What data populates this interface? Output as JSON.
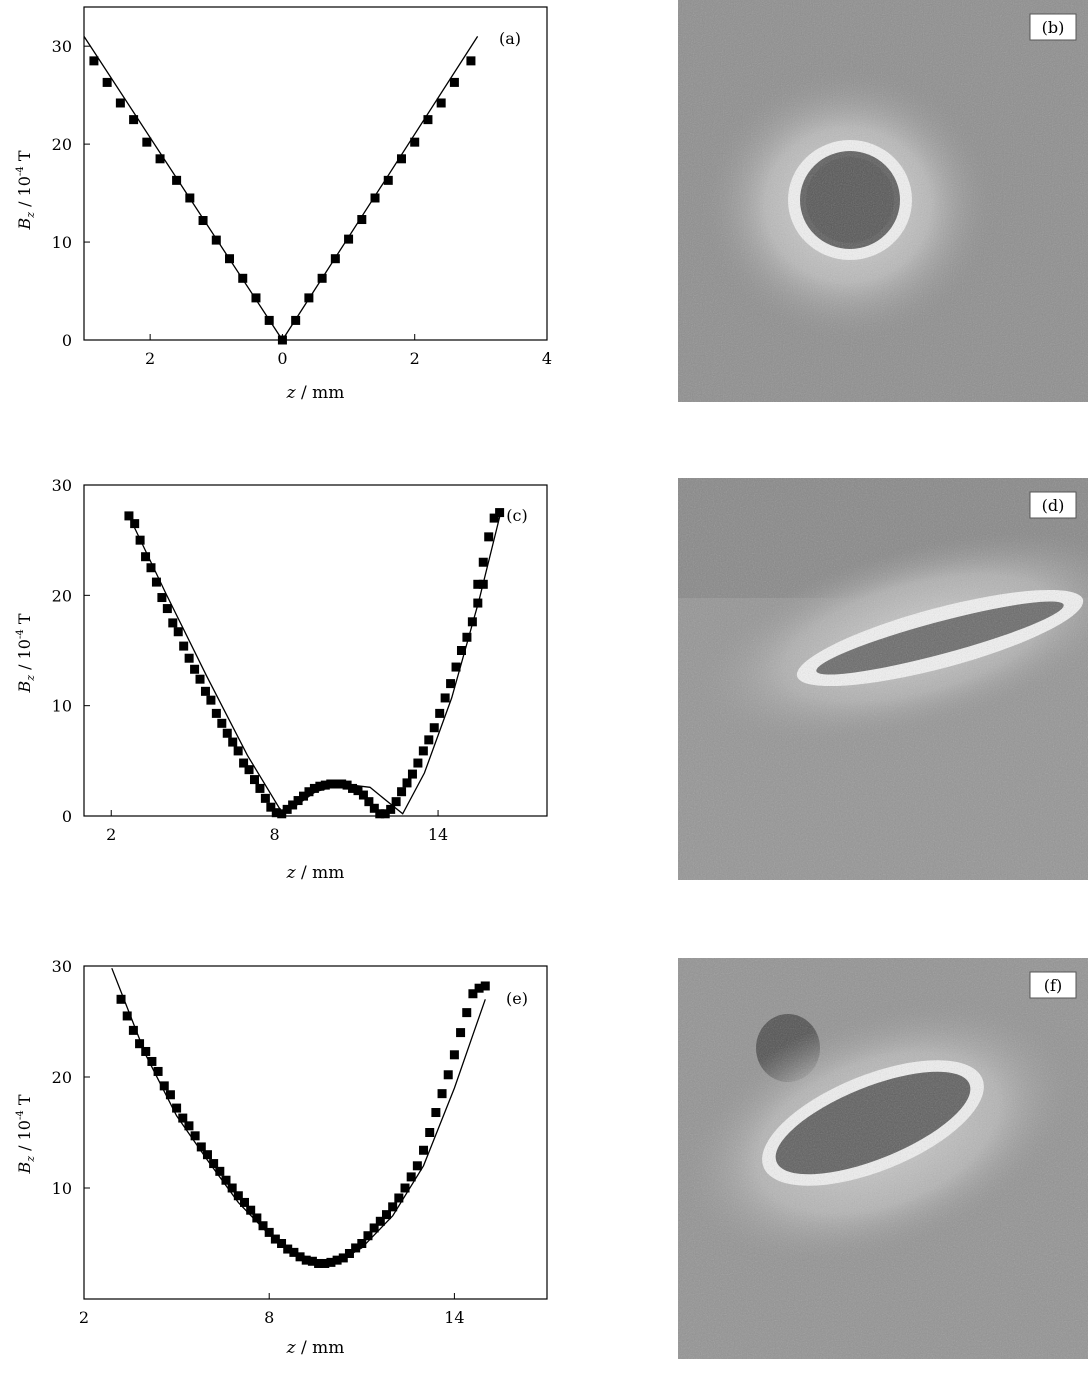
{
  "chart_data": [
    {
      "type": "scatter",
      "panel_label": "(a)",
      "xlabel": "z / mm",
      "ylabel": "Bz / 10⁻⁴ T",
      "ylabel_parts": {
        "sym": "B",
        "sub": "z",
        "unit": " / 10",
        "sup": "-4",
        "tail": " T"
      },
      "xlim": [
        -3.0,
        4.0
      ],
      "ylim": [
        0,
        34
      ],
      "x_ticks": [
        -2,
        0,
        2,
        4
      ],
      "x_tick_labels": [
        "2",
        "0",
        "2",
        "4"
      ],
      "y_ticks": [
        0,
        10,
        20,
        30
      ],
      "y_tick_labels": [
        "0",
        "10",
        "20",
        "30"
      ],
      "series": [
        {
          "style": "markers",
          "x": [
            -2.85,
            -2.65,
            -2.45,
            -2.25,
            -2.05,
            -1.85,
            -1.6,
            -1.4,
            -1.2,
            -1.0,
            -0.8,
            -0.6,
            -0.4,
            -0.2,
            0.0,
            0.2,
            0.4,
            0.6,
            0.8,
            1.0,
            1.2,
            1.4,
            1.6,
            1.8,
            2.0,
            2.2,
            2.4,
            2.6,
            2.85
          ],
          "y": [
            28.5,
            26.3,
            24.2,
            22.5,
            20.2,
            18.5,
            16.3,
            14.5,
            12.2,
            10.2,
            8.3,
            6.3,
            4.3,
            2.0,
            0.0,
            2.0,
            4.3,
            6.3,
            8.3,
            10.3,
            12.3,
            14.5,
            16.3,
            18.5,
            20.2,
            22.5,
            24.2,
            26.3,
            28.5
          ]
        },
        {
          "style": "line",
          "x": [
            -3.0,
            0.0,
            2.95
          ],
          "y": [
            31.0,
            0.0,
            31.0
          ]
        }
      ]
    },
    {
      "type": "scatter",
      "panel_label": "(c)",
      "xlabel": "z / mm",
      "ylabel": "Bz / 10⁻⁴ T",
      "ylabel_parts": {
        "sym": "B",
        "sub": "z",
        "unit": " / 10",
        "sup": "-4",
        "tail": " T"
      },
      "xlim": [
        1.0,
        18.0
      ],
      "ylim": [
        0,
        30
      ],
      "x_ticks": [
        2,
        8,
        14
      ],
      "x_tick_labels": [
        "2",
        "8",
        "14"
      ],
      "y_ticks": [
        0,
        10,
        20,
        30
      ],
      "y_tick_labels": [
        "0",
        "10",
        "20",
        "30"
      ],
      "series": [
        {
          "style": "markers",
          "x": [
            2.65,
            2.86,
            3.06,
            3.26,
            3.46,
            3.66,
            3.86,
            4.06,
            4.26,
            4.46,
            4.66,
            4.86,
            5.06,
            5.26,
            5.46,
            5.66,
            5.86,
            6.06,
            6.26,
            6.46,
            6.66,
            6.86,
            7.06,
            7.26,
            7.46,
            7.66,
            7.86,
            8.06,
            8.26,
            8.46,
            8.66,
            8.86,
            9.06,
            9.26,
            9.46,
            9.66,
            9.86,
            10.06,
            10.26,
            10.46,
            10.66,
            10.86,
            11.06,
            11.26,
            11.46,
            11.66,
            11.86,
            12.06,
            12.26,
            12.46,
            12.66,
            12.86,
            13.06,
            13.26,
            13.46,
            13.66,
            13.86,
            14.06,
            14.26,
            14.46,
            14.66,
            14.86,
            15.06,
            15.26,
            15.46,
            15.66
          ],
          "y": [
            27.2,
            26.5,
            25.0,
            23.5,
            22.5,
            21.2,
            19.8,
            18.8,
            17.5,
            16.7,
            15.4,
            14.3,
            13.3,
            12.4,
            11.3,
            10.5,
            9.3,
            8.4,
            7.5,
            6.7,
            5.9,
            4.8,
            4.2,
            3.3,
            2.5,
            1.6,
            0.8,
            0.3,
            0.2,
            0.6,
            1.0,
            1.4,
            1.8,
            2.2,
            2.5,
            2.7,
            2.8,
            2.9,
            2.9,
            2.9,
            2.8,
            2.5,
            2.3,
            1.9,
            1.3,
            0.7,
            0.2,
            0.2,
            0.6,
            1.3,
            2.2,
            3.0,
            3.8,
            4.8,
            5.9,
            6.9,
            8.0,
            9.3,
            10.7,
            12.0,
            13.5,
            15.0,
            16.2,
            17.6,
            19.3,
            21.0
          ]
        },
        {
          "style": "markers",
          "x": [
            15.46,
            15.66,
            15.86,
            16.06,
            16.26
          ],
          "y": [
            21.0,
            23.0,
            25.3,
            27.0,
            27.5
          ]
        },
        {
          "style": "line",
          "x": [
            2.65,
            4.0,
            5.5,
            7.0,
            8.3,
            8.7,
            9.5,
            10.5,
            11.5,
            12.3,
            12.7,
            13.5,
            14.5,
            15.5,
            16.3
          ],
          "y": [
            27.2,
            20.2,
            12.7,
            5.5,
            0.2,
            0.8,
            2.2,
            2.9,
            2.6,
            1.0,
            0.2,
            3.9,
            10.7,
            19.5,
            27.5
          ]
        }
      ]
    },
    {
      "type": "scatter",
      "panel_label": "(e)",
      "xlabel": "z / mm",
      "ylabel": "Bz / 10⁻⁴ T",
      "ylabel_parts": {
        "sym": "B",
        "sub": "z",
        "unit": " / 10",
        "sup": "-4",
        "tail": " T"
      },
      "xlim": [
        2.0,
        17.0
      ],
      "ylim": [
        0,
        30
      ],
      "x_ticks": [
        2,
        8,
        14
      ],
      "x_tick_labels": [
        "2",
        "8",
        "14"
      ],
      "y_ticks": [
        10,
        20,
        30
      ],
      "y_tick_labels": [
        "10",
        "20",
        "30"
      ],
      "series": [
        {
          "style": "markers",
          "x": [
            3.2,
            3.4,
            3.6,
            3.8,
            4.0,
            4.2,
            4.4,
            4.6,
            4.8,
            5.0,
            5.2,
            5.4,
            5.6,
            5.8,
            6.0,
            6.2,
            6.4,
            6.6,
            6.8,
            7.0,
            7.2,
            7.4,
            7.6,
            7.8,
            8.0,
            8.2,
            8.4,
            8.6,
            8.8,
            9.0,
            9.2,
            9.4,
            9.6,
            9.8,
            10.0,
            10.2,
            10.4,
            10.6,
            10.8,
            11.0,
            11.2,
            11.4,
            11.6,
            11.8,
            12.0,
            12.2,
            12.4,
            12.6,
            12.8,
            13.0,
            13.2,
            13.4,
            13.6,
            13.8,
            14.0,
            14.2,
            14.4,
            14.6,
            14.8,
            15.0
          ],
          "y": [
            27.0,
            25.5,
            24.2,
            23.0,
            22.3,
            21.4,
            20.5,
            19.2,
            18.4,
            17.2,
            16.3,
            15.6,
            14.7,
            13.7,
            13.0,
            12.2,
            11.5,
            10.7,
            10.0,
            9.3,
            8.7,
            8.0,
            7.3,
            6.6,
            6.0,
            5.4,
            5.0,
            4.5,
            4.2,
            3.8,
            3.5,
            3.4,
            3.2,
            3.2,
            3.3,
            3.5,
            3.7,
            4.1,
            4.6,
            5.0,
            5.7,
            6.4,
            7.0,
            7.6,
            8.3,
            9.1,
            10.0,
            11.0,
            12.0,
            13.4,
            15.0,
            16.8,
            18.5,
            20.2,
            22.0,
            24.0,
            25.8,
            27.5,
            28.0,
            28.2
          ]
        },
        {
          "style": "line",
          "x": [
            2.9,
            4.0,
            5.0,
            6.0,
            7.0,
            8.0,
            9.0,
            9.7,
            10.2,
            11.0,
            12.0,
            13.0,
            14.0,
            14.6,
            15.0
          ],
          "y": [
            29.8,
            22.0,
            16.5,
            12.5,
            8.7,
            5.8,
            4.0,
            3.3,
            3.3,
            4.6,
            7.5,
            12.0,
            19.0,
            23.8,
            27.0
          ]
        }
      ]
    }
  ],
  "image_panels": [
    {
      "label": "(b)"
    },
    {
      "label": "(d)"
    },
    {
      "label": "(f)"
    }
  ]
}
